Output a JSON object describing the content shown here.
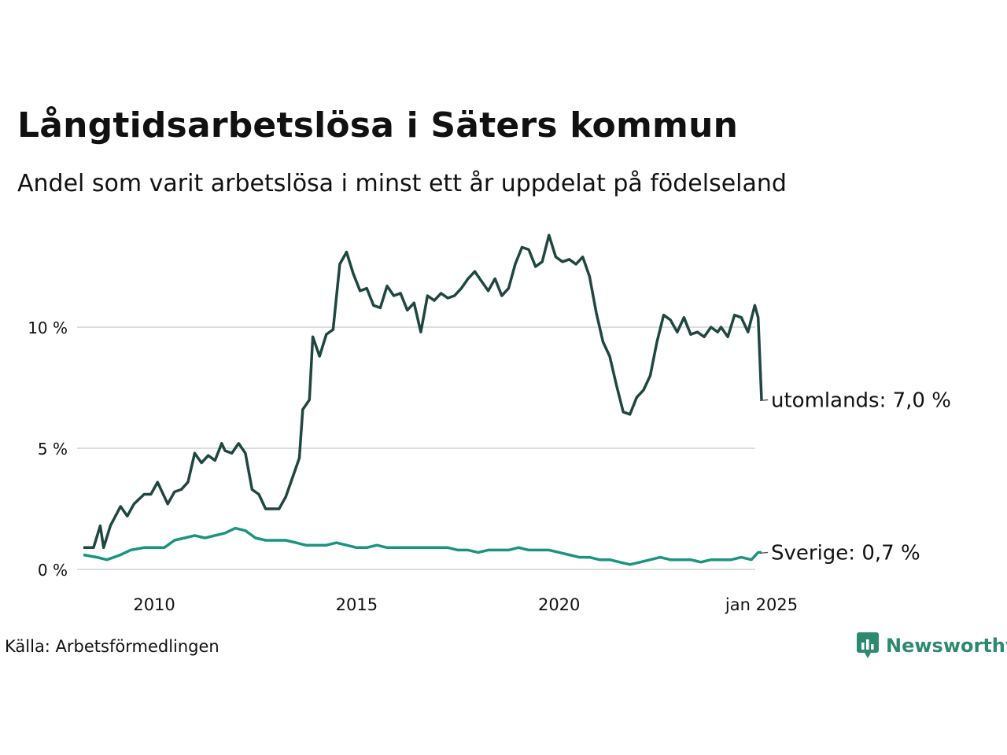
{
  "title": "Långtidsarbetslösa i Säters kommun",
  "subtitle": "Andel som varit arbetslösa i minst ett år uppdelat på födelseland",
  "source": "Källa: Arbetsförmedlingen",
  "brand": "Newsworthy",
  "colors": {
    "utomlands": "#1f4740",
    "sverige": "#1a9480",
    "grid": "#dddddd",
    "brand": "#2d8a6e"
  },
  "chart_data": {
    "type": "line",
    "x_label_axis": "",
    "y_label_axis": "",
    "ylim": [
      0,
      13.8
    ],
    "xlim": [
      "2008-04",
      "2025-01"
    ],
    "yticks": [
      {
        "value": 0,
        "label": "0 %"
      },
      {
        "value": 5,
        "label": "5 %"
      },
      {
        "value": 10,
        "label": "10 %"
      }
    ],
    "xticks": [
      {
        "value": "2010-01",
        "label": "2010"
      },
      {
        "value": "2015-01",
        "label": "2015"
      },
      {
        "value": "2020-01",
        "label": "2020"
      },
      {
        "value": "2025-01",
        "label": "jan 2025"
      }
    ],
    "grid": true,
    "series": [
      {
        "name": "utomlands",
        "end_label": "utomlands: 7,0 %",
        "points": [
          [
            "2008-04",
            0.9
          ],
          [
            "2008-07",
            0.9
          ],
          [
            "2008-09",
            1.8
          ],
          [
            "2008-10",
            0.9
          ],
          [
            "2008-12",
            1.8
          ],
          [
            "2009-03",
            2.6
          ],
          [
            "2009-05",
            2.2
          ],
          [
            "2009-07",
            2.7
          ],
          [
            "2009-10",
            3.1
          ],
          [
            "2009-12",
            3.1
          ],
          [
            "2010-02",
            3.6
          ],
          [
            "2010-05",
            2.7
          ],
          [
            "2010-07",
            3.2
          ],
          [
            "2010-09",
            3.3
          ],
          [
            "2010-11",
            3.6
          ],
          [
            "2011-01",
            4.8
          ],
          [
            "2011-03",
            4.4
          ],
          [
            "2011-05",
            4.7
          ],
          [
            "2011-07",
            4.5
          ],
          [
            "2011-09",
            5.2
          ],
          [
            "2011-10",
            4.9
          ],
          [
            "2011-12",
            4.8
          ],
          [
            "2012-02",
            5.2
          ],
          [
            "2012-04",
            4.8
          ],
          [
            "2012-06",
            3.3
          ],
          [
            "2012-08",
            3.1
          ],
          [
            "2012-10",
            2.5
          ],
          [
            "2012-12",
            2.5
          ],
          [
            "2013-02",
            2.5
          ],
          [
            "2013-04",
            3.0
          ],
          [
            "2013-06",
            3.8
          ],
          [
            "2013-08",
            4.6
          ],
          [
            "2013-09",
            6.6
          ],
          [
            "2013-11",
            7.0
          ],
          [
            "2013-12",
            9.6
          ],
          [
            "2014-02",
            8.8
          ],
          [
            "2014-04",
            9.7
          ],
          [
            "2014-06",
            9.9
          ],
          [
            "2014-08",
            12.6
          ],
          [
            "2014-10",
            13.1
          ],
          [
            "2014-12",
            12.2
          ],
          [
            "2015-02",
            11.5
          ],
          [
            "2015-04",
            11.6
          ],
          [
            "2015-06",
            10.9
          ],
          [
            "2015-08",
            10.8
          ],
          [
            "2015-10",
            11.7
          ],
          [
            "2015-12",
            11.3
          ],
          [
            "2016-02",
            11.4
          ],
          [
            "2016-04",
            10.7
          ],
          [
            "2016-06",
            11.0
          ],
          [
            "2016-08",
            9.8
          ],
          [
            "2016-10",
            11.3
          ],
          [
            "2016-12",
            11.1
          ],
          [
            "2017-02",
            11.4
          ],
          [
            "2017-04",
            11.2
          ],
          [
            "2017-06",
            11.3
          ],
          [
            "2017-08",
            11.6
          ],
          [
            "2017-10",
            12.0
          ],
          [
            "2017-12",
            12.3
          ],
          [
            "2018-02",
            11.9
          ],
          [
            "2018-04",
            11.5
          ],
          [
            "2018-06",
            12.0
          ],
          [
            "2018-08",
            11.3
          ],
          [
            "2018-10",
            11.6
          ],
          [
            "2018-12",
            12.6
          ],
          [
            "2019-02",
            13.3
          ],
          [
            "2019-04",
            13.2
          ],
          [
            "2019-06",
            12.5
          ],
          [
            "2019-08",
            12.7
          ],
          [
            "2019-10",
            13.8
          ],
          [
            "2019-12",
            12.9
          ],
          [
            "2020-02",
            12.7
          ],
          [
            "2020-04",
            12.8
          ],
          [
            "2020-06",
            12.6
          ],
          [
            "2020-08",
            12.9
          ],
          [
            "2020-10",
            12.1
          ],
          [
            "2020-12",
            10.6
          ],
          [
            "2021-02",
            9.4
          ],
          [
            "2021-04",
            8.8
          ],
          [
            "2021-06",
            7.6
          ],
          [
            "2021-08",
            6.5
          ],
          [
            "2021-10",
            6.4
          ],
          [
            "2021-12",
            7.1
          ],
          [
            "2022-02",
            7.4
          ],
          [
            "2022-04",
            8.0
          ],
          [
            "2022-06",
            9.4
          ],
          [
            "2022-08",
            10.5
          ],
          [
            "2022-10",
            10.3
          ],
          [
            "2022-12",
            9.8
          ],
          [
            "2023-02",
            10.4
          ],
          [
            "2023-04",
            9.7
          ],
          [
            "2023-06",
            9.8
          ],
          [
            "2023-08",
            9.6
          ],
          [
            "2023-10",
            10.0
          ],
          [
            "2023-12",
            9.8
          ],
          [
            "2024-01",
            10.0
          ],
          [
            "2024-03",
            9.6
          ],
          [
            "2024-05",
            10.5
          ],
          [
            "2024-07",
            10.4
          ],
          [
            "2024-09",
            9.8
          ],
          [
            "2024-11",
            10.9
          ],
          [
            "2024-12",
            10.4
          ],
          [
            "2025-01",
            7.0
          ]
        ]
      },
      {
        "name": "Sverige",
        "end_label": "Sverige: 0,7 %",
        "points": [
          [
            "2008-04",
            0.6
          ],
          [
            "2008-08",
            0.5
          ],
          [
            "2008-11",
            0.4
          ],
          [
            "2009-03",
            0.6
          ],
          [
            "2009-06",
            0.8
          ],
          [
            "2009-10",
            0.9
          ],
          [
            "2010-01",
            0.9
          ],
          [
            "2010-04",
            0.9
          ],
          [
            "2010-07",
            1.2
          ],
          [
            "2010-10",
            1.3
          ],
          [
            "2011-01",
            1.4
          ],
          [
            "2011-04",
            1.3
          ],
          [
            "2011-07",
            1.4
          ],
          [
            "2011-10",
            1.5
          ],
          [
            "2012-01",
            1.7
          ],
          [
            "2012-04",
            1.6
          ],
          [
            "2012-07",
            1.3
          ],
          [
            "2012-10",
            1.2
          ],
          [
            "2013-01",
            1.2
          ],
          [
            "2013-04",
            1.2
          ],
          [
            "2013-07",
            1.1
          ],
          [
            "2013-10",
            1.0
          ],
          [
            "2014-01",
            1.0
          ],
          [
            "2014-04",
            1.0
          ],
          [
            "2014-07",
            1.1
          ],
          [
            "2014-10",
            1.0
          ],
          [
            "2015-01",
            0.9
          ],
          [
            "2015-04",
            0.9
          ],
          [
            "2015-07",
            1.0
          ],
          [
            "2015-10",
            0.9
          ],
          [
            "2016-01",
            0.9
          ],
          [
            "2016-04",
            0.9
          ],
          [
            "2016-07",
            0.9
          ],
          [
            "2016-10",
            0.9
          ],
          [
            "2017-01",
            0.9
          ],
          [
            "2017-04",
            0.9
          ],
          [
            "2017-07",
            0.8
          ],
          [
            "2017-10",
            0.8
          ],
          [
            "2018-01",
            0.7
          ],
          [
            "2018-04",
            0.8
          ],
          [
            "2018-07",
            0.8
          ],
          [
            "2018-10",
            0.8
          ],
          [
            "2019-01",
            0.9
          ],
          [
            "2019-04",
            0.8
          ],
          [
            "2019-07",
            0.8
          ],
          [
            "2019-10",
            0.8
          ],
          [
            "2020-01",
            0.7
          ],
          [
            "2020-04",
            0.6
          ],
          [
            "2020-07",
            0.5
          ],
          [
            "2020-10",
            0.5
          ],
          [
            "2021-01",
            0.4
          ],
          [
            "2021-04",
            0.4
          ],
          [
            "2021-07",
            0.3
          ],
          [
            "2021-10",
            0.2
          ],
          [
            "2022-01",
            0.3
          ],
          [
            "2022-04",
            0.4
          ],
          [
            "2022-07",
            0.5
          ],
          [
            "2022-10",
            0.4
          ],
          [
            "2023-01",
            0.4
          ],
          [
            "2023-04",
            0.4
          ],
          [
            "2023-07",
            0.3
          ],
          [
            "2023-10",
            0.4
          ],
          [
            "2024-01",
            0.4
          ],
          [
            "2024-04",
            0.4
          ],
          [
            "2024-07",
            0.5
          ],
          [
            "2024-10",
            0.4
          ],
          [
            "2024-12",
            0.7
          ],
          [
            "2025-01",
            0.7
          ]
        ]
      }
    ]
  }
}
